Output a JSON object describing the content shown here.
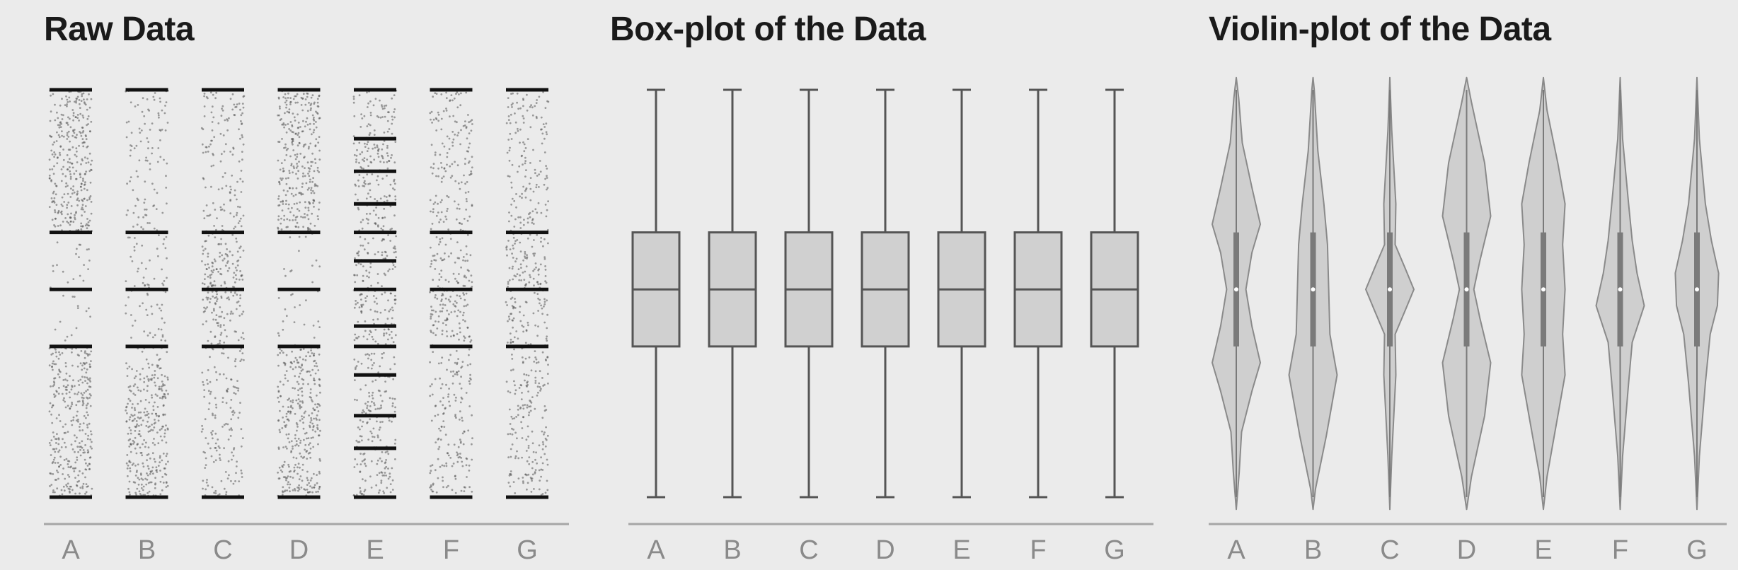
{
  "chart_data": [
    {
      "type": "scatter",
      "title": "Raw Data",
      "xlabel": "",
      "ylabel": "",
      "categories": [
        "A",
        "B",
        "C",
        "D",
        "E",
        "F",
        "G"
      ],
      "ylim": [
        0,
        1
      ],
      "grid": false,
      "series": [
        {
          "category": "A",
          "bands": [
            0.0,
            0.37,
            0.51,
            0.65,
            1.0
          ],
          "density": "bimodal-extremes"
        },
        {
          "category": "B",
          "bands": [
            0.0,
            0.37,
            0.51,
            0.65,
            1.0
          ],
          "density": "low-heavy"
        },
        {
          "category": "C",
          "bands": [
            0.0,
            0.37,
            0.51,
            0.65,
            1.0
          ],
          "density": "center-heavy"
        },
        {
          "category": "D",
          "bands": [
            0.0,
            0.37,
            0.51,
            0.65,
            1.0
          ],
          "density": "bimodal-extremes"
        },
        {
          "category": "E",
          "bands": [
            0.0,
            0.37,
            0.51,
            0.65,
            1.0
          ],
          "density": "striped"
        },
        {
          "category": "F",
          "bands": [
            0.0,
            0.37,
            0.51,
            0.65,
            1.0
          ],
          "density": "slight-center"
        },
        {
          "category": "G",
          "bands": [
            0.0,
            0.37,
            0.51,
            0.65,
            1.0
          ],
          "density": "upper-center"
        }
      ]
    },
    {
      "type": "box",
      "title": "Box-plot of the Data",
      "xlabel": "",
      "ylabel": "",
      "categories": [
        "A",
        "B",
        "C",
        "D",
        "E",
        "F",
        "G"
      ],
      "ylim": [
        0,
        1
      ],
      "grid": false,
      "series": [
        {
          "category": "A",
          "min": 0.0,
          "q1": 0.37,
          "median": 0.51,
          "q3": 0.65,
          "max": 1.0
        },
        {
          "category": "B",
          "min": 0.0,
          "q1": 0.37,
          "median": 0.51,
          "q3": 0.65,
          "max": 1.0
        },
        {
          "category": "C",
          "min": 0.0,
          "q1": 0.37,
          "median": 0.51,
          "q3": 0.65,
          "max": 1.0
        },
        {
          "category": "D",
          "min": 0.0,
          "q1": 0.37,
          "median": 0.51,
          "q3": 0.65,
          "max": 1.0
        },
        {
          "category": "E",
          "min": 0.0,
          "q1": 0.37,
          "median": 0.51,
          "q3": 0.65,
          "max": 1.0
        },
        {
          "category": "F",
          "min": 0.0,
          "q1": 0.37,
          "median": 0.51,
          "q3": 0.65,
          "max": 1.0
        },
        {
          "category": "G",
          "min": 0.0,
          "q1": 0.37,
          "median": 0.51,
          "q3": 0.65,
          "max": 1.0
        }
      ]
    },
    {
      "type": "violin",
      "title": "Violin-plot of the Data",
      "xlabel": "",
      "ylabel": "",
      "categories": [
        "A",
        "B",
        "C",
        "D",
        "E",
        "F",
        "G"
      ],
      "ylim": [
        0,
        1
      ],
      "grid": false,
      "series": [
        {
          "category": "A",
          "median": 0.51,
          "q1": 0.37,
          "q3": 0.65,
          "density": [
            [
              -0.03,
              0
            ],
            [
              0.06,
              0.12
            ],
            [
              0.16,
              0.22
            ],
            [
              0.26,
              0.65
            ],
            [
              0.33,
              1.0
            ],
            [
              0.42,
              0.65
            ],
            [
              0.51,
              0.4
            ],
            [
              0.6,
              0.65
            ],
            [
              0.67,
              1.0
            ],
            [
              0.76,
              0.65
            ],
            [
              0.87,
              0.25
            ],
            [
              0.98,
              0.1
            ],
            [
              1.03,
              0
            ]
          ]
        },
        {
          "category": "B",
          "median": 0.51,
          "q1": 0.37,
          "q3": 0.65,
          "density": [
            [
              -0.03,
              0
            ],
            [
              0.02,
              0.1
            ],
            [
              0.15,
              0.55
            ],
            [
              0.3,
              1.0
            ],
            [
              0.4,
              0.7
            ],
            [
              0.51,
              0.65
            ],
            [
              0.62,
              0.6
            ],
            [
              0.72,
              0.45
            ],
            [
              0.85,
              0.2
            ],
            [
              1.0,
              0.05
            ],
            [
              1.03,
              0
            ]
          ]
        },
        {
          "category": "C",
          "median": 0.51,
          "q1": 0.37,
          "q3": 0.65,
          "density": [
            [
              -0.03,
              0
            ],
            [
              0.1,
              0.08
            ],
            [
              0.3,
              0.25
            ],
            [
              0.4,
              0.22
            ],
            [
              0.46,
              0.65
            ],
            [
              0.51,
              1.0
            ],
            [
              0.56,
              0.65
            ],
            [
              0.62,
              0.22
            ],
            [
              0.72,
              0.25
            ],
            [
              0.9,
              0.08
            ],
            [
              1.03,
              0
            ]
          ]
        },
        {
          "category": "D",
          "median": 0.51,
          "q1": 0.37,
          "q3": 0.65,
          "density": [
            [
              -0.03,
              0
            ],
            [
              0.05,
              0.2
            ],
            [
              0.2,
              0.75
            ],
            [
              0.33,
              1.0
            ],
            [
              0.44,
              0.55
            ],
            [
              0.51,
              0.3
            ],
            [
              0.58,
              0.55
            ],
            [
              0.69,
              1.0
            ],
            [
              0.82,
              0.75
            ],
            [
              0.97,
              0.2
            ],
            [
              1.03,
              0
            ]
          ]
        },
        {
          "category": "E",
          "median": 0.51,
          "q1": 0.37,
          "q3": 0.65,
          "density": [
            [
              -0.03,
              0
            ],
            [
              0.05,
              0.15
            ],
            [
              0.2,
              0.6
            ],
            [
              0.3,
              0.9
            ],
            [
              0.4,
              0.8
            ],
            [
              0.51,
              0.9
            ],
            [
              0.62,
              0.8
            ],
            [
              0.72,
              0.9
            ],
            [
              0.82,
              0.6
            ],
            [
              0.95,
              0.15
            ],
            [
              1.03,
              0
            ]
          ]
        },
        {
          "category": "F",
          "median": 0.51,
          "q1": 0.37,
          "q3": 0.65,
          "density": [
            [
              -0.03,
              0
            ],
            [
              0.1,
              0.1
            ],
            [
              0.28,
              0.35
            ],
            [
              0.38,
              0.5
            ],
            [
              0.47,
              1.0
            ],
            [
              0.55,
              0.7
            ],
            [
              0.63,
              0.5
            ],
            [
              0.72,
              0.35
            ],
            [
              0.88,
              0.1
            ],
            [
              1.03,
              0
            ]
          ]
        },
        {
          "category": "G",
          "median": 0.51,
          "q1": 0.37,
          "q3": 0.65,
          "density": [
            [
              -0.03,
              0
            ],
            [
              0.1,
              0.1
            ],
            [
              0.28,
              0.35
            ],
            [
              0.4,
              0.55
            ],
            [
              0.47,
              0.85
            ],
            [
              0.55,
              0.9
            ],
            [
              0.63,
              0.6
            ],
            [
              0.72,
              0.35
            ],
            [
              0.88,
              0.1
            ],
            [
              1.03,
              0
            ]
          ]
        }
      ]
    }
  ]
}
